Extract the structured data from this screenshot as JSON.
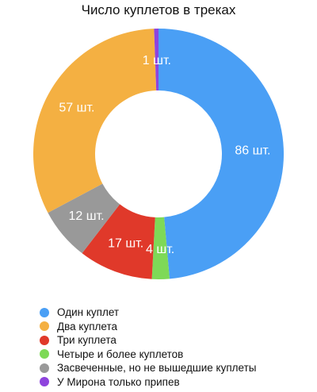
{
  "chart_data": {
    "type": "pie",
    "title": "Число куплетов в треках",
    "unit_suffix": " шт.",
    "series": [
      {
        "name": "Один куплет",
        "value": 86,
        "color": "#4a9ff5"
      },
      {
        "name": "Два куплета",
        "value": 57,
        "color": "#f4b042"
      },
      {
        "name": "Три куплета",
        "value": 17,
        "color": "#e0392a"
      },
      {
        "name": "Четыре и более куплетов",
        "value": 4,
        "color": "#7ed957"
      },
      {
        "name": "Засвеченные, но не вышедшие куплеты",
        "value": 12,
        "color": "#999999"
      },
      {
        "name": "У Мирона только припев",
        "value": 1,
        "color": "#8e44dd"
      }
    ],
    "slice_order": [
      0,
      3,
      2,
      4,
      1,
      5
    ],
    "legend_position": "bottom-left"
  }
}
